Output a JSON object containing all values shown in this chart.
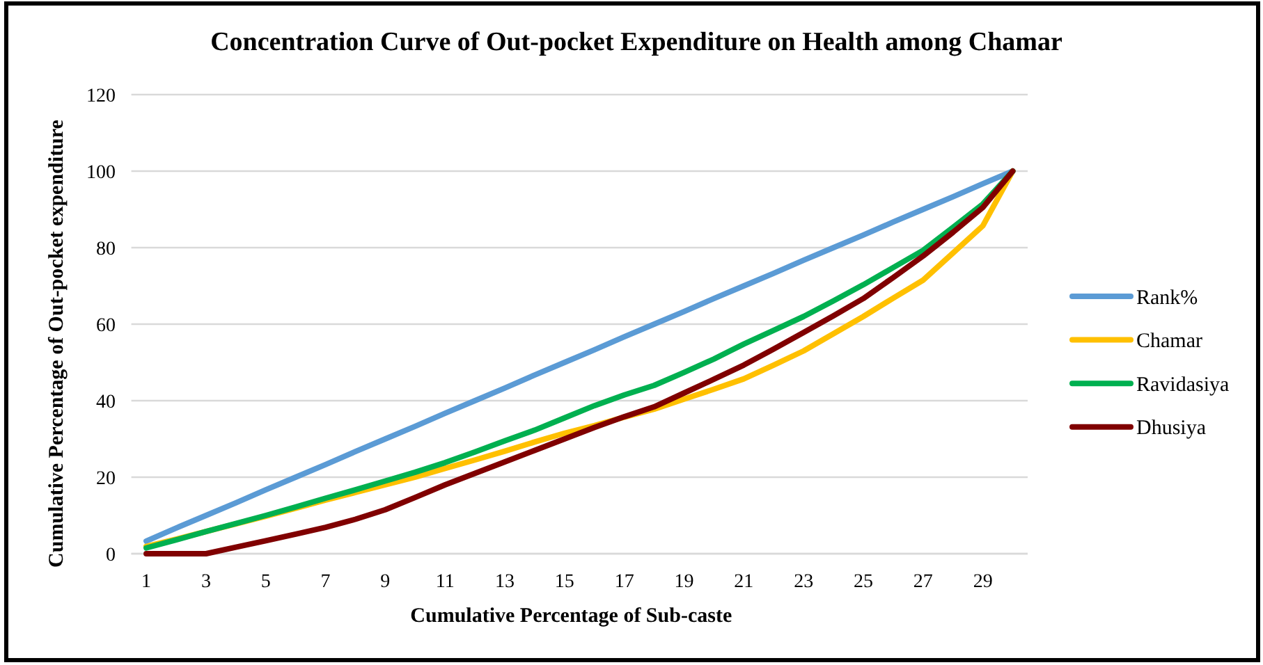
{
  "chart_data": {
    "type": "line",
    "title": "Concentration Curve of Out-pocket Expenditure on Health among Chamar",
    "xlabel": "Cumulative Percentage of Sub-caste",
    "ylabel": "Cumulative Percentage of Out-pocket expenditure",
    "x": [
      1,
      2,
      3,
      4,
      5,
      6,
      7,
      8,
      9,
      10,
      11,
      12,
      13,
      14,
      15,
      16,
      17,
      18,
      19,
      20,
      21,
      22,
      23,
      24,
      25,
      26,
      27,
      28,
      29,
      30
    ],
    "series": [
      {
        "name": "Rank%",
        "color": "#5b9bd5",
        "values": [
          3.3,
          6.7,
          10,
          13.3,
          16.7,
          20,
          23.3,
          26.7,
          30,
          33.3,
          36.7,
          40,
          43.3,
          46.7,
          50,
          53.3,
          56.7,
          60,
          63.3,
          66.7,
          70,
          73.3,
          76.7,
          80,
          83.3,
          86.7,
          90,
          93.3,
          96.7,
          100
        ]
      },
      {
        "name": "Chamar",
        "color": "#ffc000",
        "values": [
          1.9,
          3.8,
          5.8,
          7.8,
          9.8,
          11.9,
          14,
          16,
          18,
          20,
          22.3,
          24.5,
          26.8,
          29.2,
          31.5,
          33.5,
          35.7,
          37.8,
          40.4,
          43,
          45.7,
          49.3,
          53,
          57.5,
          62,
          66.8,
          71.5,
          78.6,
          85.7,
          100
        ]
      },
      {
        "name": "Ravidasiya",
        "color": "#00b050",
        "values": [
          1.5,
          3.6,
          5.8,
          7.9,
          10,
          12.2,
          14.5,
          16.7,
          19,
          21.3,
          23.8,
          26.6,
          29.5,
          32.3,
          35.5,
          38.7,
          41.5,
          44,
          47.4,
          50.9,
          54.8,
          58.4,
          62,
          66.1,
          70.3,
          74.8,
          79.3,
          85.3,
          91.4,
          100
        ]
      },
      {
        "name": "Dhusiya",
        "color": "#800000",
        "values": [
          0,
          0,
          0,
          1.7,
          3.4,
          5.1,
          6.9,
          9,
          11.5,
          14.7,
          18,
          21,
          24,
          27,
          30,
          33,
          35.8,
          38.4,
          42,
          45.6,
          49.3,
          53.5,
          57.8,
          62.2,
          66.7,
          72.2,
          77.8,
          84,
          90.5,
          100
        ]
      }
    ],
    "xlim": [
      0.5,
      30.5
    ],
    "xticks": [
      1,
      3,
      5,
      7,
      9,
      11,
      13,
      15,
      17,
      19,
      21,
      23,
      25,
      27,
      29
    ],
    "ylim": [
      0,
      120
    ],
    "yticks": [
      0,
      20,
      40,
      60,
      80,
      100,
      120
    ],
    "grid": "y",
    "legend": "right",
    "line_style": "solid"
  }
}
